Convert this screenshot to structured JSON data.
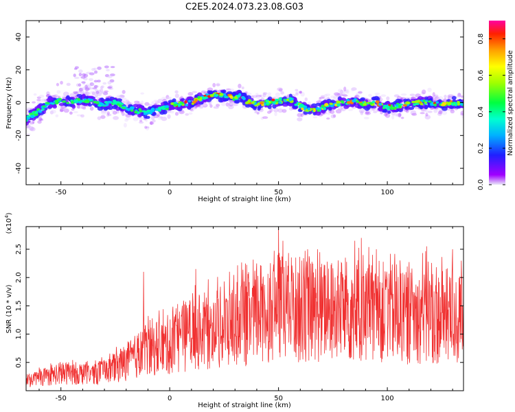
{
  "title": "C2E5.2024.073.23.08.G03",
  "chart_data": [
    {
      "type": "heatmap",
      "xlabel": "Height of straight line (km)",
      "ylabel": "Frequency (Hz)",
      "xlim": [
        -66,
        135
      ],
      "ylim": [
        -50,
        50
      ],
      "xticks": [
        -50,
        0,
        50,
        100
      ],
      "yticks": [
        -40,
        -20,
        0,
        20,
        40
      ],
      "colorbar": {
        "label": "Normalized spectral amplitude",
        "range": [
          0.0,
          0.9
        ],
        "ticks": [
          0.0,
          0.2,
          0.4,
          0.6,
          0.8
        ]
      },
      "ridge": {
        "x": [
          -66,
          -60,
          -55,
          -50,
          -45,
          -40,
          -35,
          -30,
          -25,
          -20,
          -15,
          -10,
          -5,
          0,
          5,
          10,
          15,
          20,
          25,
          30,
          33,
          35,
          40,
          45,
          50,
          55,
          60,
          65,
          70,
          75,
          80,
          85,
          90,
          95,
          100,
          105,
          110,
          115,
          120,
          125,
          130,
          135
        ],
        "frequency": [
          -10,
          -5,
          0,
          1,
          0,
          2,
          0,
          -1,
          0,
          -3,
          -5,
          -6,
          -4,
          -2,
          -1,
          0,
          3,
          5,
          4,
          3,
          4,
          1,
          -1,
          0,
          1,
          2,
          -2,
          -5,
          -3,
          -1,
          0,
          1,
          -1,
          0,
          -3,
          -2,
          -1,
          0,
          0,
          -1,
          0,
          -1
        ]
      },
      "grid": false
    },
    {
      "type": "line",
      "xlabel": "Height of straight line (km)",
      "ylabel": "SNR (10 * v/v)",
      "y_multiplier_label": "(x10",
      "y_multiplier_exp": "4",
      "y_multiplier_close": ")",
      "xlim": [
        -66,
        135
      ],
      "ylim": [
        0,
        2.9
      ],
      "xticks": [
        -50,
        0,
        50,
        100
      ],
      "yticks": [
        0.5,
        1.0,
        1.5,
        2.0,
        2.5
      ],
      "series": [
        {
          "color": "#f03030",
          "x": [
            -66,
            -60,
            -50,
            -40,
            -30,
            -25,
            -20,
            -15,
            -12,
            -10,
            -5,
            0,
            5,
            10,
            20,
            30,
            40,
            45,
            50,
            55,
            60,
            70,
            80,
            90,
            100,
            110,
            120,
            130,
            135
          ],
          "mean": [
            0.15,
            0.22,
            0.3,
            0.3,
            0.33,
            0.4,
            0.5,
            0.6,
            0.75,
            0.7,
            0.75,
            0.8,
            0.9,
            1.0,
            1.05,
            1.15,
            1.3,
            1.4,
            1.45,
            1.45,
            1.4,
            1.35,
            1.4,
            1.35,
            1.35,
            1.3,
            1.3,
            1.25,
            1.2
          ],
          "peaks": [
            {
              "x": -12,
              "y": 2.1
            },
            {
              "x": 12,
              "y": 2.15
            },
            {
              "x": 40,
              "y": 2.25
            },
            {
              "x": 50,
              "y": 2.9
            },
            {
              "x": 52,
              "y": 2.65
            },
            {
              "x": 68,
              "y": 2.5
            },
            {
              "x": 85,
              "y": 2.65
            },
            {
              "x": 88,
              "y": 2.7
            },
            {
              "x": 95,
              "y": 2.5
            },
            {
              "x": 118,
              "y": 2.55
            },
            {
              "x": 130,
              "y": 2.5
            }
          ]
        }
      ],
      "grid": false
    }
  ]
}
